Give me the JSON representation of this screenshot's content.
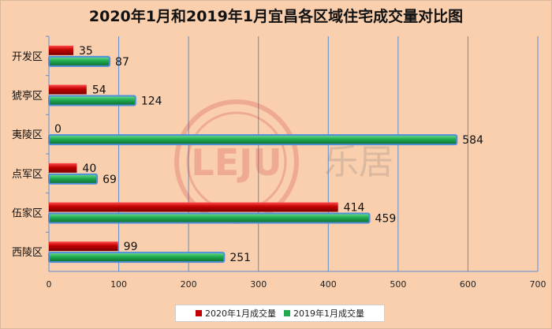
{
  "chart_data": {
    "type": "bar",
    "orientation": "horizontal",
    "title": "2020年1月和2019年1月宜昌各区域住宅成交量对比图",
    "categories": [
      "开发区",
      "猇亭区",
      "夷陵区",
      "点军区",
      "伍家区",
      "西陵区"
    ],
    "series": [
      {
        "name": "2020年1月成交量",
        "values": [
          35,
          54,
          0,
          40,
          414,
          99
        ],
        "color": "#c00000"
      },
      {
        "name": "2019年1月成交量",
        "values": [
          87,
          124,
          584,
          69,
          459,
          251
        ],
        "color": "#1faa4e"
      }
    ],
    "xlim": [
      0,
      700
    ],
    "xticks": [
      0,
      100,
      200,
      300,
      400,
      500,
      600,
      700
    ],
    "grid": true,
    "legend": "bottom"
  },
  "watermark": {
    "text": "LEJU",
    "text_cn": "乐居"
  }
}
